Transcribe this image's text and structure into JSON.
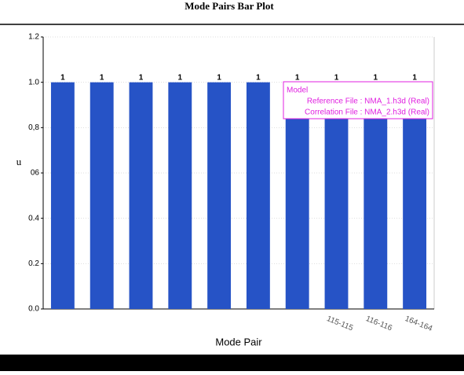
{
  "chart_data": {
    "type": "bar",
    "title": "Mode Pairs Bar Plot",
    "x_label": "Mode Pair",
    "y_label": "u",
    "categories": [
      null,
      null,
      null,
      null,
      null,
      null,
      null,
      "115-115",
      "116-116",
      "164-164"
    ],
    "values": [
      1,
      1,
      1,
      1,
      1,
      1,
      1,
      1,
      1,
      1
    ],
    "color": "#2653c6",
    "ylim": [
      0,
      1.2
    ],
    "yticks": [
      {
        "value": 0,
        "label": "0.0"
      },
      0.2,
      0.4,
      {
        "value": 0.6,
        "label": "06"
      },
      {
        "value": 0.8,
        "label": "0,8"
      },
      {
        "value": 1,
        "label": "1.0"
      },
      1.2
    ],
    "grid": true,
    "legend": {
      "title": "Model",
      "entries": [
        "Reference File : NMA_1.h3d (Real)",
        "Correlation File : NMA_2.h3d (Real)"
      ],
      "color": "#e020e0"
    }
  }
}
